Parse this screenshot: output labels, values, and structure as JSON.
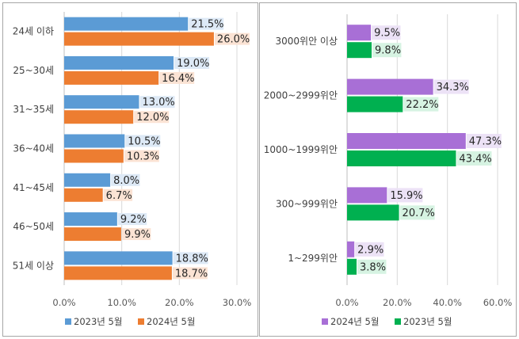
{
  "chart_data": [
    {
      "type": "bar",
      "orientation": "horizontal",
      "title": "",
      "xlabel": "",
      "ylabel": "",
      "xlim": [
        0,
        30
      ],
      "xticks": [
        "0.0%",
        "10.0%",
        "20.0%",
        "30.0%"
      ],
      "grid": true,
      "legend_position": "bottom",
      "categories": [
        "24세 이하",
        "25~30세",
        "31~35세",
        "36~40세",
        "41~45세",
        "46~50세",
        "51세 이상"
      ],
      "series": [
        {
          "name": "2023년 5월",
          "color": "#5b9bd5",
          "label_bg": "#dde9f6",
          "values": [
            21.5,
            19.0,
            13.0,
            10.5,
            8.0,
            9.2,
            18.8
          ],
          "labels": [
            "21.5%",
            "19.0%",
            "13.0%",
            "10.5%",
            "8.0%",
            "9.2%",
            "18.8%"
          ]
        },
        {
          "name": "2024년 5월",
          "color": "#ed7d31",
          "label_bg": "#fbe3d4",
          "values": [
            26.0,
            16.4,
            12.0,
            10.3,
            6.7,
            9.9,
            18.7
          ],
          "labels": [
            "26.0%",
            "16.4%",
            "12.0%",
            "10.3%",
            "6.7%",
            "9.9%",
            "18.7%"
          ]
        }
      ]
    },
    {
      "type": "bar",
      "orientation": "horizontal",
      "title": "",
      "xlabel": "",
      "ylabel": "",
      "xlim": [
        0,
        60
      ],
      "xticks": [
        "0.0%",
        "20.0%",
        "40.0%",
        "60.0%"
      ],
      "grid": true,
      "legend_position": "bottom",
      "categories": [
        "3000위안 이상",
        "2000~2999위안",
        "1000~1999위안",
        "300~999위안",
        "1~299위안"
      ],
      "series": [
        {
          "name": "2024년 5월",
          "color": "#a86fd6",
          "label_bg": "#ece2f6",
          "values": [
            9.5,
            34.3,
            47.3,
            15.9,
            2.9
          ],
          "labels": [
            "9.5%",
            "34.3%",
            "47.3%",
            "15.9%",
            "2.9%"
          ]
        },
        {
          "name": "2023년 5월",
          "color": "#00b050",
          "label_bg": "#d6f3e2",
          "values": [
            9.8,
            22.2,
            43.4,
            20.7,
            3.8
          ],
          "labels": [
            "9.8%",
            "22.2%",
            "43.4%",
            "20.7%",
            "3.8%"
          ]
        }
      ]
    }
  ]
}
